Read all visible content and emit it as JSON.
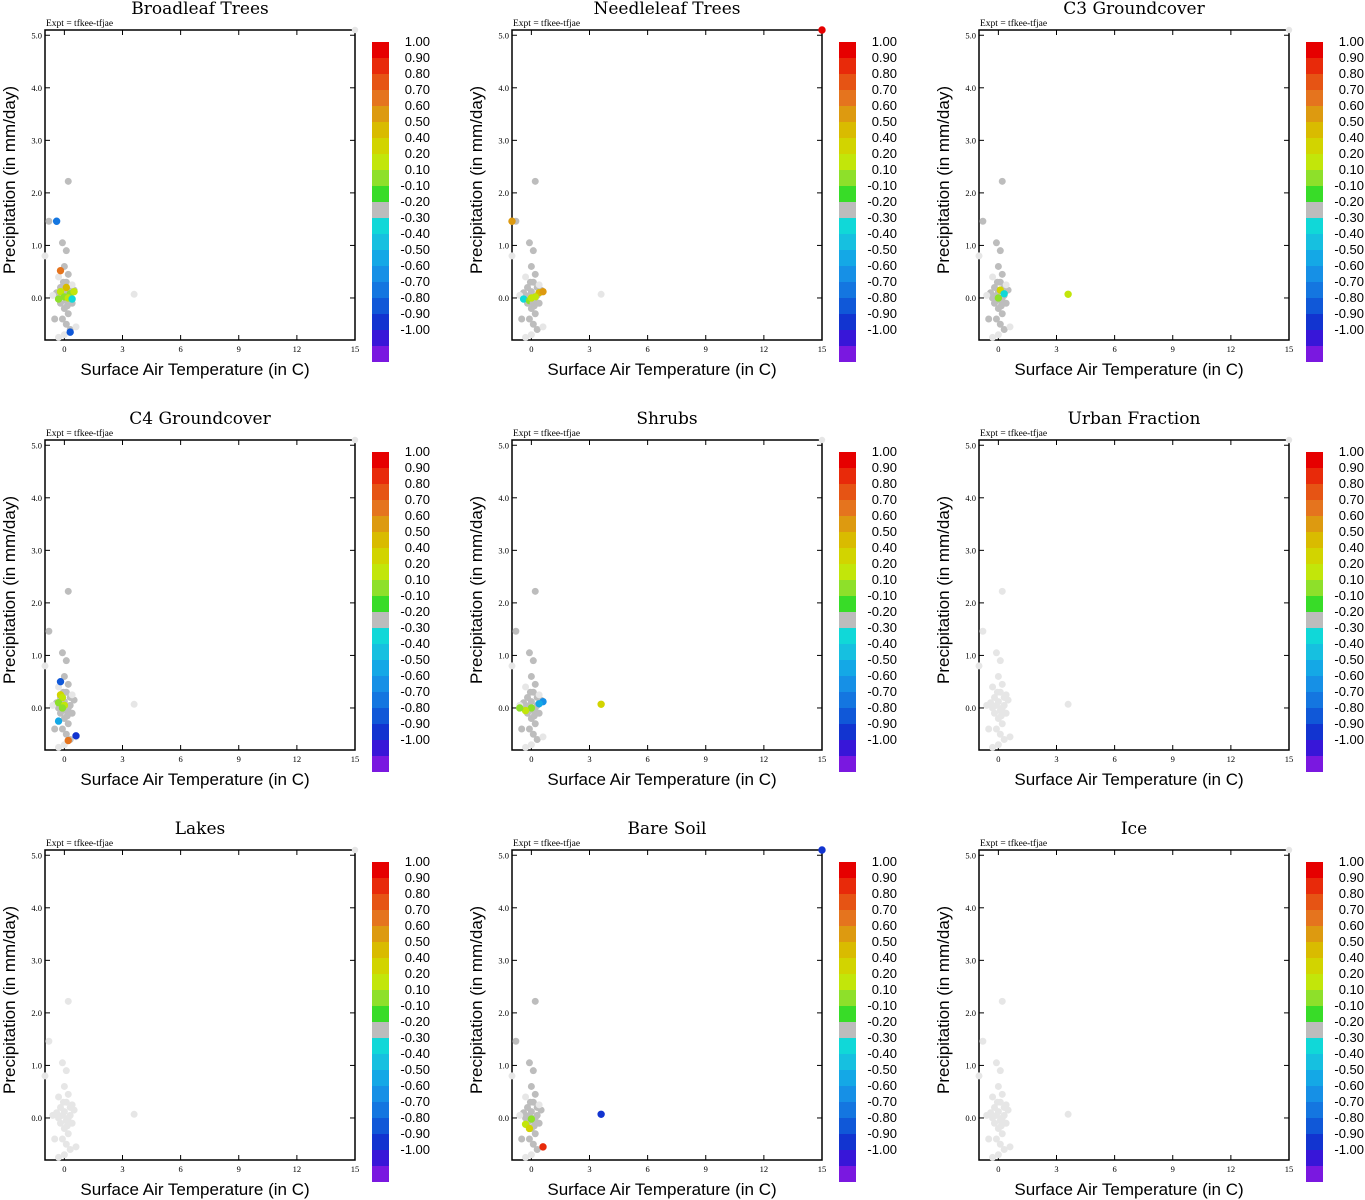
{
  "colors": {
    "levels": [
      "1.00",
      "0.90",
      "0.80",
      "0.70",
      "0.60",
      "0.50",
      "0.40",
      "0.20",
      "0.10",
      "-0.10",
      "-0.20",
      "-0.30",
      "-0.40",
      "-0.50",
      "-0.60",
      "-0.70",
      "-0.80",
      "-0.90",
      "-1.00"
    ],
    "swatches": [
      "#e60000",
      "#e82a0a",
      "#e65414",
      "#e5741e",
      "#dd9a10",
      "#d9bb00",
      "#d2d400",
      "#c2e60a",
      "#8ee02a",
      "#38dc28",
      "#bcbcbc",
      "#10d8d8",
      "#16c0e0",
      "#14a8e6",
      "#1690e6",
      "#1476e0",
      "#1058d8",
      "#1234d0",
      "#3816d8",
      "#7a18e0"
    ]
  },
  "chart_data": [
    {
      "type": "scatter",
      "title": "Broadleaf Trees",
      "annotation": "Expt = tfkee-tfjae",
      "xlabel": "Surface Air Temperature (in C)",
      "ylabel": "Precipitation (in mm/day)",
      "xlim": [
        -1,
        15
      ],
      "ylim": [
        -0.8,
        5.1
      ],
      "xticks": [
        "0",
        "3",
        "6",
        "9",
        "12",
        "15"
      ],
      "yticks": [
        "0.0",
        "1.0",
        "2.0",
        "3.0",
        "4.0",
        "5.0"
      ],
      "points": [
        {
          "x": -0.4,
          "y": 1.46,
          "c": -0.7
        },
        {
          "x": -0.2,
          "y": 0.52,
          "c": 0.7
        },
        {
          "x": 0.1,
          "y": 0.2,
          "c": 0.55
        },
        {
          "x": -0.2,
          "y": 0.12,
          "c": 0.3
        },
        {
          "x": 0.3,
          "y": 0.08,
          "c": 0.15
        },
        {
          "x": 0.5,
          "y": 0.12,
          "c": 0.3
        },
        {
          "x": 0.0,
          "y": 0.02,
          "c": 0.12
        },
        {
          "x": -0.3,
          "y": -0.02,
          "c": 0.15
        },
        {
          "x": 0.2,
          "y": 0.0,
          "c": 0.2
        },
        {
          "x": 0.4,
          "y": -0.02,
          "c": -0.3
        },
        {
          "x": 0.3,
          "y": -0.65,
          "c": -0.8
        }
      ]
    },
    {
      "type": "scatter",
      "title": "Needleleaf Trees",
      "annotation": "Expt = tfkee-tfjae",
      "xlabel": "Surface Air Temperature (in C)",
      "ylabel": "Precipitation (in mm/day)",
      "xlim": [
        -1,
        15
      ],
      "ylim": [
        -0.8,
        5.1
      ],
      "xticks": [
        "0",
        "3",
        "6",
        "9",
        "12",
        "15"
      ],
      "yticks": [
        "0.0",
        "1.0",
        "2.0",
        "3.0",
        "4.0",
        "5.0"
      ],
      "points": [
        {
          "x": -1.0,
          "y": 1.46,
          "c": 0.6
        },
        {
          "x": 15.0,
          "y": 5.1,
          "c": 1.0
        },
        {
          "x": 0.4,
          "y": 0.1,
          "c": 0.55
        },
        {
          "x": 0.6,
          "y": 0.12,
          "c": 0.6
        },
        {
          "x": 0.2,
          "y": 0.02,
          "c": 0.3
        },
        {
          "x": -0.4,
          "y": -0.02,
          "c": -0.3
        },
        {
          "x": -0.1,
          "y": -0.05,
          "c": 0.12
        },
        {
          "x": 0.1,
          "y": -0.1,
          "c": -0.2
        },
        {
          "x": 0.0,
          "y": 0.0,
          "c": 0.2
        }
      ]
    },
    {
      "type": "scatter",
      "title": "C3 Groundcover",
      "annotation": "Expt = tfkee-tfjae",
      "xlabel": "Surface Air Temperature (in C)",
      "ylabel": "Precipitation (in mm/day)",
      "xlim": [
        -1,
        15
      ],
      "ylim": [
        -0.8,
        5.1
      ],
      "xticks": [
        "0",
        "3",
        "6",
        "9",
        "12",
        "15"
      ],
      "yticks": [
        "0.0",
        "1.0",
        "2.0",
        "3.0",
        "4.0",
        "5.0"
      ],
      "points": [
        {
          "x": 3.6,
          "y": 0.07,
          "c": 0.2
        },
        {
          "x": 0.1,
          "y": 0.15,
          "c": 0.45
        },
        {
          "x": 0.0,
          "y": 0.0,
          "c": 0.12
        },
        {
          "x": 0.3,
          "y": 0.08,
          "c": -0.3
        }
      ]
    },
    {
      "type": "scatter",
      "title": "C4 Groundcover",
      "annotation": "Expt = tfkee-tfjae",
      "xlabel": "Surface Air Temperature (in C)",
      "ylabel": "Precipitation (in mm/day)",
      "xlim": [
        -1,
        15
      ],
      "ylim": [
        -0.8,
        5.1
      ],
      "xticks": [
        "0",
        "3",
        "6",
        "9",
        "12",
        "15"
      ],
      "yticks": [
        "0.0",
        "1.0",
        "2.0",
        "3.0",
        "4.0",
        "5.0"
      ],
      "points": [
        {
          "x": -0.2,
          "y": 0.5,
          "c": -0.8
        },
        {
          "x": -0.2,
          "y": 0.25,
          "c": 0.4
        },
        {
          "x": -0.1,
          "y": 0.2,
          "c": 0.3
        },
        {
          "x": -0.3,
          "y": 0.1,
          "c": 0.15
        },
        {
          "x": 0.0,
          "y": 0.05,
          "c": 0.2
        },
        {
          "x": -0.1,
          "y": 0.0,
          "c": 0.12
        },
        {
          "x": -0.3,
          "y": -0.25,
          "c": -0.5
        },
        {
          "x": 0.6,
          "y": -0.53,
          "c": -0.85
        },
        {
          "x": 0.2,
          "y": -0.62,
          "c": 0.7
        }
      ]
    },
    {
      "type": "scatter",
      "title": "Shrubs",
      "annotation": "Expt = tfkee-tfjae",
      "xlabel": "Surface Air Temperature (in C)",
      "ylabel": "Precipitation (in mm/day)",
      "xlim": [
        -1,
        15
      ],
      "ylim": [
        -0.8,
        5.1
      ],
      "xticks": [
        "0",
        "3",
        "6",
        "9",
        "12",
        "15"
      ],
      "yticks": [
        "0.0",
        "1.0",
        "2.0",
        "3.0",
        "4.0",
        "5.0"
      ],
      "points": [
        {
          "x": 3.6,
          "y": 0.07,
          "c": 0.4
        },
        {
          "x": 0.6,
          "y": 0.12,
          "c": -0.55
        },
        {
          "x": 0.4,
          "y": 0.08,
          "c": -0.5
        },
        {
          "x": 0.0,
          "y": 0.0,
          "c": 0.12
        },
        {
          "x": -0.3,
          "y": -0.05,
          "c": 0.3
        },
        {
          "x": -0.6,
          "y": 0.0,
          "c": 0.15
        }
      ]
    },
    {
      "type": "scatter",
      "title": "Urban Fraction",
      "annotation": "Expt = tfkee-tfjae",
      "xlabel": "Surface Air Temperature (in C)",
      "ylabel": "Precipitation (in mm/day)",
      "xlim": [
        -1,
        15
      ],
      "ylim": [
        -0.8,
        5.1
      ],
      "xticks": [
        "0",
        "3",
        "6",
        "9",
        "12",
        "15"
      ],
      "yticks": [
        "0.0",
        "1.0",
        "2.0",
        "3.0",
        "4.0",
        "5.0"
      ],
      "points": []
    },
    {
      "type": "scatter",
      "title": "Lakes",
      "annotation": "Expt = tfkee-tfjae",
      "xlabel": "Surface Air Temperature (in C)",
      "ylabel": "Precipitation (in mm/day)",
      "xlim": [
        -1,
        15
      ],
      "ylim": [
        -0.8,
        5.1
      ],
      "xticks": [
        "0",
        "3",
        "6",
        "9",
        "12",
        "15"
      ],
      "yticks": [
        "0.0",
        "1.0",
        "2.0",
        "3.0",
        "4.0",
        "5.0"
      ],
      "points": []
    },
    {
      "type": "scatter",
      "title": "Bare Soil",
      "annotation": "Expt = tfkee-tfjae",
      "xlabel": "Surface Air Temperature (in C)",
      "ylabel": "Precipitation (in mm/day)",
      "xlim": [
        -1,
        15
      ],
      "ylim": [
        -0.8,
        5.1
      ],
      "xticks": [
        "0",
        "3",
        "6",
        "9",
        "12",
        "15"
      ],
      "yticks": [
        "0.0",
        "1.0",
        "2.0",
        "3.0",
        "4.0",
        "5.0"
      ],
      "points": [
        {
          "x": 15.0,
          "y": 5.1,
          "c": -0.9
        },
        {
          "x": 3.6,
          "y": 0.07,
          "c": -0.9
        },
        {
          "x": 0.0,
          "y": -0.02,
          "c": 0.12
        },
        {
          "x": -0.3,
          "y": -0.12,
          "c": 0.3
        },
        {
          "x": -0.1,
          "y": -0.2,
          "c": 0.45
        },
        {
          "x": 0.6,
          "y": -0.55,
          "c": 0.9
        }
      ]
    },
    {
      "type": "scatter",
      "title": "Ice",
      "annotation": "Expt = tfkee-tfjae",
      "xlabel": "Surface Air Temperature (in C)",
      "ylabel": "Precipitation (in mm/day)",
      "xlim": [
        -1,
        15
      ],
      "ylim": [
        -0.8,
        5.1
      ],
      "xticks": [
        "0",
        "3",
        "6",
        "9",
        "12",
        "15"
      ],
      "yticks": [
        "0.0",
        "1.0",
        "2.0",
        "3.0",
        "4.0",
        "5.0"
      ],
      "points": []
    }
  ]
}
